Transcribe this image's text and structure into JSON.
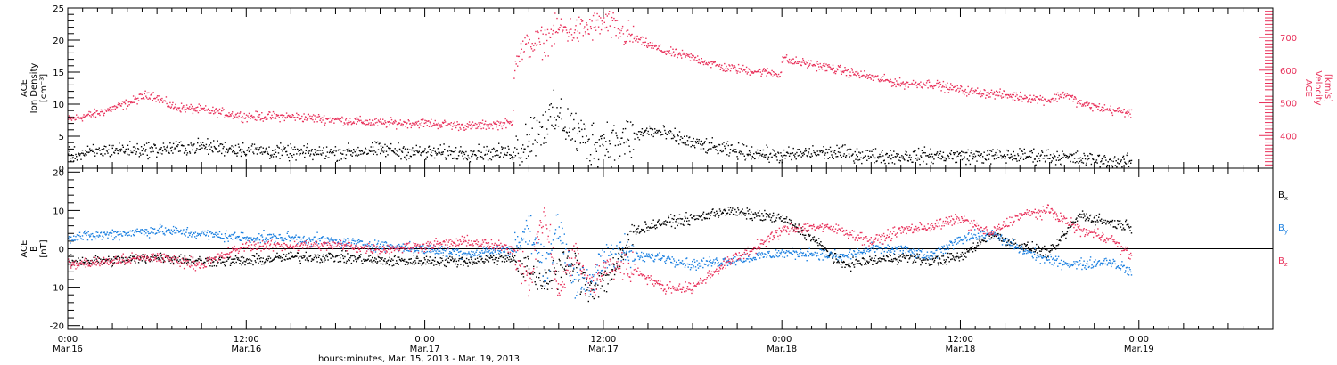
{
  "figure": {
    "xlabel": "hours:minutes, Mar. 15, 2013 - Mar. 19, 2013",
    "x_ticks": [
      {
        "t": 0,
        "top": "0:00",
        "bottom": "Mar.16"
      },
      {
        "t": 12,
        "top": "12:00",
        "bottom": "Mar.16"
      },
      {
        "t": 24,
        "top": "0:00",
        "bottom": "Mar.17"
      },
      {
        "t": 36,
        "top": "12:00",
        "bottom": "Mar.17"
      },
      {
        "t": 48,
        "top": "0:00",
        "bottom": "Mar.18"
      },
      {
        "t": 60,
        "top": "12:00",
        "bottom": "Mar.18"
      },
      {
        "t": 72,
        "top": "0:00",
        "bottom": "Mar.19"
      }
    ],
    "x_range_hours": [
      0,
      81
    ]
  },
  "colors": {
    "black": "#000000",
    "red": "#e8305a",
    "blue": "#1a7fe0"
  },
  "chart_data": [
    {
      "type": "scatter",
      "xlabel": "hours:minutes, Mar. 15, 2013 - Mar. 19, 2013",
      "ylabel_lines": [
        "ACE",
        "Ion Density",
        "[cm⁻³]"
      ],
      "ylim": [
        0,
        25
      ],
      "yticks": [
        0,
        5,
        10,
        15,
        20,
        25
      ],
      "y2label_lines": [
        "ACE",
        "Velocity",
        "[km/s]"
      ],
      "y2lim": [
        300,
        790
      ],
      "y2ticks": [
        400,
        500,
        600,
        700
      ],
      "series": [
        {
          "color": "#000000",
          "axis": "left",
          "noise": 1.0,
          "x": [
            0,
            3,
            6,
            9,
            12,
            15,
            18,
            21,
            24,
            27,
            30,
            31,
            32,
            33,
            34,
            35,
            36,
            37,
            38,
            39,
            40,
            42,
            44,
            46,
            48,
            50,
            52,
            54,
            56,
            58,
            60,
            62,
            64,
            66,
            68,
            70,
            71.5
          ],
          "y": [
            2,
            3,
            3,
            3.5,
            3,
            2.5,
            2.5,
            3,
            2.5,
            2.5,
            2.5,
            5,
            7,
            8,
            6,
            4,
            4.5,
            4,
            5,
            6,
            5.5,
            4,
            3,
            2.5,
            2,
            2.5,
            2.5,
            2,
            2,
            2,
            2,
            2,
            2,
            2,
            1.5,
            1.2,
            1
          ]
        },
        {
          "color": "#e8305a",
          "axis": "right",
          "noise": 12,
          "x": [
            0,
            2,
            4,
            5.5,
            7,
            9,
            12,
            15,
            18,
            21,
            24,
            27,
            29.9,
            30,
            31,
            32,
            33,
            34,
            35,
            36,
            37,
            38,
            40,
            42,
            44,
            46,
            47.9,
            48,
            48.5,
            50,
            52,
            54,
            55,
            56,
            58,
            60,
            62,
            64,
            66,
            67,
            68,
            70,
            71.5
          ],
          "y": [
            450,
            470,
            500,
            530,
            490,
            480,
            460,
            460,
            450,
            440,
            440,
            430,
            440,
            640,
            680,
            690,
            730,
            720,
            730,
            750,
            720,
            700,
            660,
            640,
            610,
            600,
            590,
            640,
            630,
            620,
            600,
            580,
            570,
            560,
            560,
            540,
            530,
            520,
            510,
            530,
            500,
            480,
            470
          ]
        }
      ]
    },
    {
      "type": "scatter",
      "ylabel_lines": [
        "ACE",
        "B",
        "[nT]"
      ],
      "ylim": [
        -21,
        21
      ],
      "yticks": [
        -20,
        -10,
        0,
        10,
        20
      ],
      "zero_line": true,
      "series": [
        {
          "name": "Bx",
          "legend_main": "B",
          "legend_sub": "x",
          "color": "#000000",
          "noise": 1.2,
          "x": [
            0,
            3,
            6,
            9,
            12,
            15,
            18,
            21,
            24,
            27,
            29.9,
            31,
            32,
            33,
            34,
            35,
            36,
            37,
            38,
            40,
            42,
            44,
            46,
            48,
            50,
            52,
            54,
            56,
            58,
            60,
            62,
            64,
            66,
            68,
            70,
            71.5
          ],
          "y": [
            -3,
            -3,
            -2,
            -3,
            -3,
            -2,
            -2,
            -3,
            -3,
            -3,
            -2,
            -6,
            -8,
            -5,
            -4,
            -10,
            -8,
            -4,
            5,
            7,
            8,
            10,
            9,
            8,
            3,
            -4,
            -3,
            -2,
            -3,
            -2,
            4,
            1,
            -1,
            9,
            7,
            6
          ]
        },
        {
          "name": "By",
          "legend_main": "B",
          "legend_sub": "y",
          "color": "#1a7fe0",
          "noise": 1.2,
          "x": [
            0,
            3,
            6,
            9,
            12,
            15,
            18,
            21,
            24,
            27,
            29.9,
            31,
            32,
            33,
            34,
            35,
            36,
            37,
            38,
            40,
            42,
            44,
            46,
            48,
            50,
            52,
            54,
            56,
            58,
            60,
            62,
            64,
            66,
            68,
            70,
            71.5
          ],
          "y": [
            3,
            4,
            5,
            4,
            3,
            3,
            2,
            1,
            0,
            -1,
            0,
            5,
            -5,
            6,
            -8,
            -10,
            -2,
            0,
            -2,
            -2,
            -4,
            -3,
            -2,
            -1,
            -1,
            -2,
            0,
            0,
            -2,
            3,
            4,
            0,
            -3,
            -4,
            -3,
            -6
          ]
        },
        {
          "name": "Bz",
          "legend_main": "B",
          "legend_sub": "z",
          "color": "#e8305a",
          "noise": 1.2,
          "x": [
            0,
            3,
            6,
            9,
            12,
            15,
            18,
            21,
            24,
            27,
            29.9,
            31,
            32,
            33,
            34,
            35,
            36,
            37,
            38,
            40,
            42,
            44,
            46,
            48,
            50,
            52,
            54,
            56,
            58,
            60,
            62,
            64,
            66,
            68,
            70,
            71.5
          ],
          "y": [
            -4,
            -3,
            -2,
            -4,
            1,
            1,
            1,
            0,
            1,
            2,
            0,
            -8,
            10,
            -12,
            0,
            -10,
            -5,
            -4,
            -5,
            -10,
            -10,
            -4,
            0,
            5,
            6,
            5,
            2,
            5,
            6,
            8,
            4,
            9,
            10,
            5,
            3,
            -2
          ]
        }
      ]
    }
  ]
}
